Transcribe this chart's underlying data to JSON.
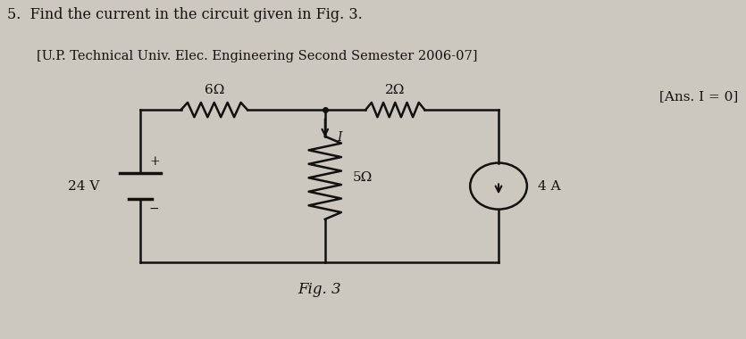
{
  "title_line1": "5.  Find the current in the circuit given in Fig. 3.",
  "title_line2": "[U.P. Technical Univ. Elec. Engineering Second Semester 2006-07]",
  "title_line3": "[Ans. I = 0]",
  "fig_label": "Fig. 3",
  "bg_color": "#ccc8bf",
  "circuit_color": "#111111",
  "voltage_source": "24 V",
  "resistor_top_left": "6Ω",
  "resistor_top_right": "2Ω",
  "resistor_mid": "5Ω",
  "current_source": "4 A",
  "current_label": "I",
  "xl": 0.185,
  "xm": 0.435,
  "xr": 0.67,
  "yt": 0.68,
  "yb": 0.22
}
